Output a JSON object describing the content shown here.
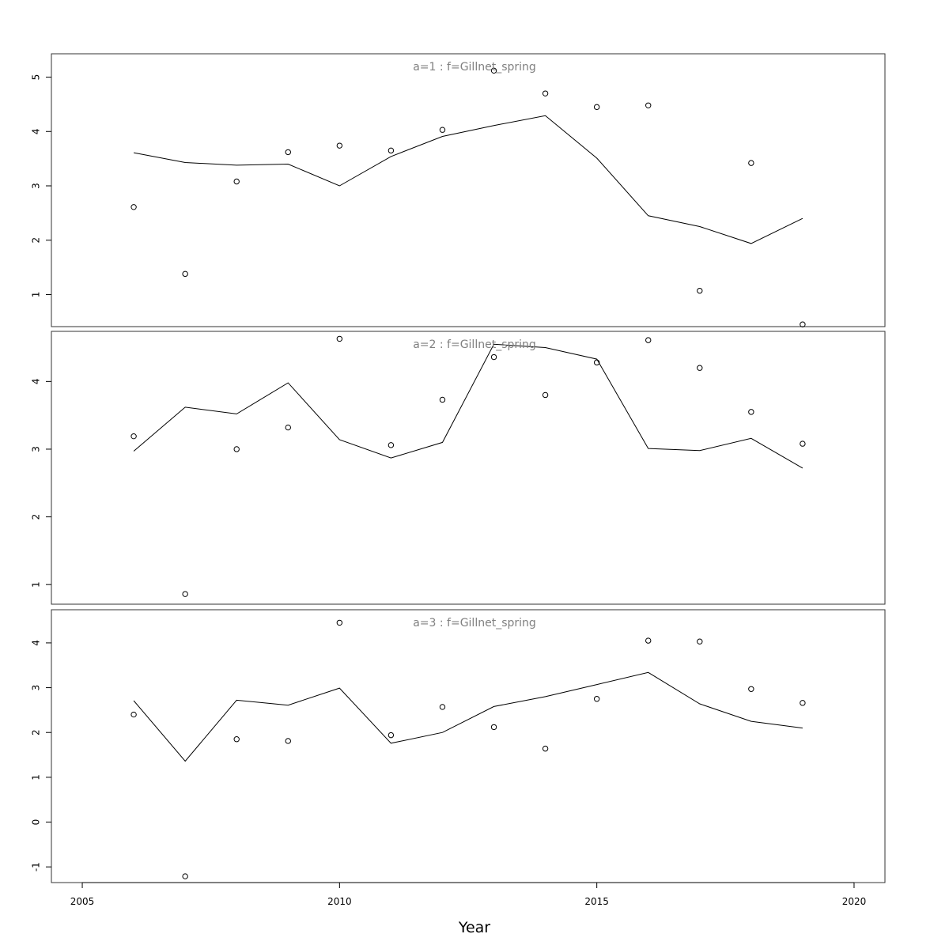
{
  "chart_data": [
    {
      "type": "line",
      "title": "a=1  :  f=Gillnet_spring",
      "x": [
        2006,
        2007,
        2008,
        2009,
        2010,
        2011,
        2012,
        2013,
        2014,
        2015,
        2016,
        2017,
        2018,
        2019
      ],
      "series": [
        {
          "kind": "line",
          "values": [
            3.61,
            3.43,
            3.38,
            3.4,
            3.0,
            3.54,
            3.91,
            4.11,
            4.29,
            3.51,
            2.45,
            2.25,
            1.94,
            2.4
          ]
        },
        {
          "kind": "points",
          "values": [
            2.61,
            1.38,
            3.08,
            3.62,
            3.74,
            3.65,
            4.03,
            5.12,
            4.7,
            4.45,
            4.48,
            1.07,
            3.42,
            0.45
          ]
        }
      ],
      "yticks": [
        1,
        2,
        3,
        4,
        5
      ],
      "ylim": [
        0.41,
        5.43
      ]
    },
    {
      "type": "line",
      "title": "a=2  :  f=Gillnet_spring",
      "x": [
        2006,
        2007,
        2008,
        2009,
        2010,
        2011,
        2012,
        2013,
        2014,
        2015,
        2016,
        2017,
        2018,
        2019
      ],
      "series": [
        {
          "kind": "line",
          "values": [
            2.97,
            3.62,
            3.52,
            3.98,
            3.14,
            2.87,
            3.1,
            4.55,
            4.5,
            4.33,
            3.01,
            2.98,
            3.16,
            2.72
          ]
        },
        {
          "kind": "points",
          "values": [
            3.19,
            0.86,
            3.0,
            3.32,
            4.63,
            3.06,
            3.73,
            4.36,
            3.8,
            4.28,
            4.61,
            4.2,
            3.55,
            3.08
          ]
        }
      ],
      "yticks": [
        1,
        2,
        3,
        4
      ],
      "ylim": [
        0.71,
        4.74
      ]
    },
    {
      "type": "line",
      "title": "a=3  :  f=Gillnet_spring",
      "x": [
        2006,
        2007,
        2008,
        2009,
        2010,
        2011,
        2012,
        2013,
        2014,
        2015,
        2016,
        2017,
        2018,
        2019
      ],
      "series": [
        {
          "kind": "line",
          "values": [
            2.71,
            1.36,
            2.72,
            2.61,
            2.99,
            1.76,
            2.0,
            2.58,
            2.8,
            3.07,
            3.34,
            2.64,
            2.25,
            2.1
          ]
        },
        {
          "kind": "points",
          "values": [
            2.4,
            -1.21,
            1.85,
            1.81,
            4.45,
            1.94,
            2.57,
            2.12,
            1.64,
            2.75,
            4.05,
            4.03,
            2.97,
            2.66
          ]
        }
      ],
      "yticks": [
        -1,
        0,
        1,
        2,
        3,
        4
      ],
      "ylim": [
        -1.35,
        4.74
      ]
    }
  ],
  "xaxis": {
    "label": "Year",
    "ticks": [
      2005,
      2010,
      2015,
      2020
    ],
    "xlim": [
      2004.4,
      2020.6
    ]
  }
}
